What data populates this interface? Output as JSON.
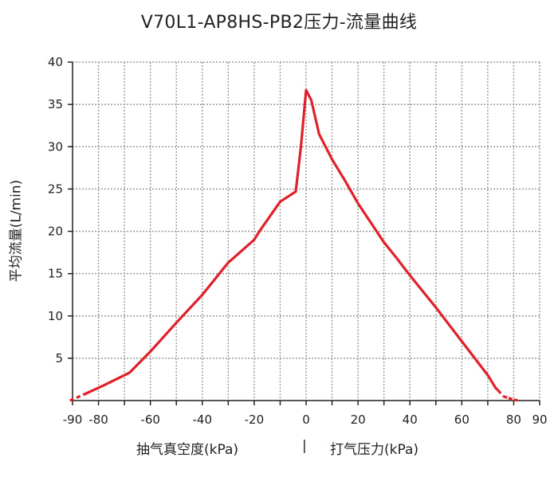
{
  "chart_data": {
    "type": "line",
    "title": "V70L1-AP8HS-PB2压力-流量曲线",
    "ylabel": "平均流量(L/min)",
    "xlabel_left": "抽气真空度(kPa)",
    "xlabel_separator": "|",
    "xlabel_right": "打气压力(kPa)",
    "xlim": [
      -90,
      90
    ],
    "ylim": [
      0,
      40
    ],
    "x_ticks": [
      -90,
      -80,
      -60,
      -40,
      -20,
      0,
      20,
      40,
      60,
      80,
      90
    ],
    "y_ticks": [
      5,
      10,
      15,
      20,
      25,
      30,
      35,
      40
    ],
    "grid": true,
    "series": [
      {
        "color": "#e0202a",
        "x": [
          -91,
          -85,
          -78,
          -68,
          -60,
          -50,
          -40,
          -30,
          -20,
          -18,
          -10,
          -5,
          -4,
          -2,
          0,
          2,
          5,
          10,
          15,
          20,
          25,
          30,
          35,
          40,
          50,
          60,
          65,
          70,
          73,
          74,
          76,
          78,
          80,
          82
        ],
        "y": [
          0,
          0.8,
          1.8,
          3.3,
          5.8,
          9.2,
          12.5,
          16.3,
          19,
          20,
          23.5,
          24.5,
          24.7,
          30,
          36.7,
          35.5,
          31.5,
          28.5,
          26,
          23.3,
          21,
          18.7,
          16.8,
          14.8,
          11,
          7,
          5,
          3,
          1.5,
          1.2,
          0.5,
          0.3,
          0.1,
          0
        ],
        "dashed_ranges": [
          [
            -91,
            -85
          ],
          [
            74,
            82
          ]
        ]
      }
    ]
  },
  "colors": {
    "line": "#e0202a",
    "grid": "#9a9a9a",
    "axis": "#222222"
  }
}
